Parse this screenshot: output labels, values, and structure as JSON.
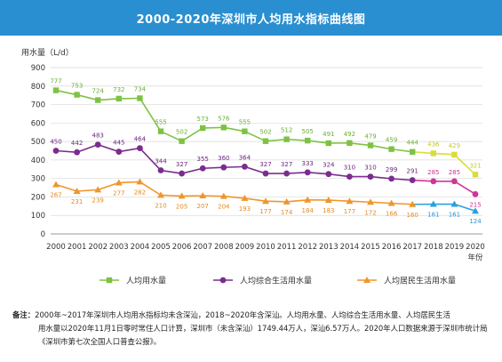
{
  "header": {
    "title": "2000-2020年深圳市人均用水指标曲线图"
  },
  "chart_data": {
    "type": "line",
    "title": "2000-2020年深圳市人均用水指标曲线图",
    "ylabel": "用水量（L/d）",
    "xlabel": "年份",
    "ylim": [
      0,
      900
    ],
    "yticks": [
      0,
      100,
      200,
      300,
      400,
      500,
      600,
      700,
      800,
      900
    ],
    "x": [
      "2000",
      "2001",
      "2002",
      "2003",
      "2004",
      "2005",
      "2006",
      "2007",
      "2008",
      "2009",
      "2010",
      "2011",
      "2012",
      "2013",
      "2014",
      "2015",
      "2016",
      "2017",
      "2018",
      "2019",
      "2020"
    ],
    "grid": true,
    "legend_position": "bottom",
    "series": [
      {
        "name": "人均用水量",
        "marker": "square",
        "color": "#7dc242",
        "alt_color": "#d8dd3a",
        "label_color": "#6ab032",
        "alt_label_color": "#c9c82c",
        "values": [
          777,
          753,
          724,
          732,
          734,
          555,
          502,
          573,
          576,
          555,
          502,
          512,
          505,
          491,
          492,
          479,
          459,
          444,
          436,
          429,
          321
        ]
      },
      {
        "name": "人均综合生活用水量",
        "marker": "circle",
        "color": "#7b2c8f",
        "alt_color": "#d1359a",
        "label_color": "#6c2480",
        "alt_label_color": "#cc3394",
        "values": [
          450,
          442,
          483,
          445,
          464,
          344,
          327,
          355,
          360,
          364,
          327,
          327,
          333,
          324,
          310,
          310,
          299,
          291,
          285,
          285,
          215
        ]
      },
      {
        "name": "人均居民生活用水量",
        "marker": "triangle",
        "color": "#f0962a",
        "alt_color": "#2aa0de",
        "label_color": "#e58a22",
        "alt_label_color": "#2a96d6",
        "values": [
          267,
          231,
          239,
          277,
          282,
          210,
          205,
          207,
          204,
          193,
          177,
          174,
          184,
          183,
          177,
          172,
          166,
          160,
          161,
          161,
          124
        ]
      }
    ],
    "alt_color_from_index": 18
  },
  "note": {
    "label": "备注：",
    "line1": "2000年~2017年深圳市人均用水指标均未含深汕，2018~2020年含深汕。人均用水量、人均综合生活用水量、人均居民生活",
    "line2": "用水量以2020年11月1日零时常住人口计算，深圳市（未含深汕）1749.44万人，深汕6.57万人。2020年人口数据来源于深圳市统计局《深圳市第七次全国人口普查公报》。"
  }
}
